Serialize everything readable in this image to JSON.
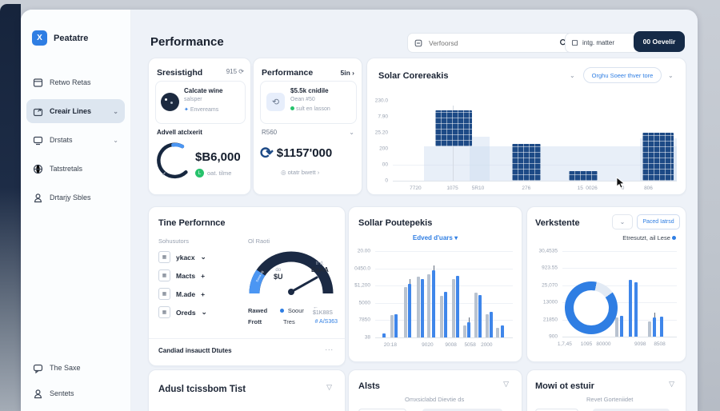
{
  "app_colors": {
    "accent": "#2f7ee3",
    "navy": "#152a47",
    "bar_dark": "#1d4a86",
    "bar_blue": "#3f86ea",
    "bar_gray": "#b9c3d0",
    "green": "#27c26c"
  },
  "sidebar": {
    "logo_glyph": "X",
    "logo_text": "Peatatre",
    "items": [
      {
        "label": "Retwo Retas",
        "icon": "window-icon",
        "chevron": false,
        "active": false
      },
      {
        "label": "Creair Lines",
        "icon": "box-arrow-icon",
        "chevron": true,
        "active": true
      },
      {
        "label": "Drstats",
        "icon": "monitor-icon",
        "chevron": true,
        "active": false
      },
      {
        "label": "Tatstretals",
        "icon": "globe-icon",
        "chevron": false,
        "active": false
      },
      {
        "label": "Drtarjy Sbles",
        "icon": "user-icon",
        "chevron": false,
        "active": false
      }
    ],
    "footer_items": [
      {
        "label": "The Saxe",
        "icon": "chat-icon"
      },
      {
        "label": "Sentets",
        "icon": "user-icon"
      }
    ]
  },
  "header": {
    "title": "Performance",
    "search_placeholder": "Verfoorsd",
    "filter_label": "intg. matter",
    "primary_button": "00 Oevelir"
  },
  "stat_card_1": {
    "title": "Sresistighd",
    "meta": "915",
    "profile": {
      "name": "Calcate wine",
      "subtitle": "salsper",
      "badge": "Envereams"
    },
    "section_label": "Advell atclxerit",
    "amount": "$B6,000",
    "footer_badge": "L",
    "footer_text": "oat. tilme"
  },
  "stat_card_2": {
    "title": "Performance",
    "link": "5in ›",
    "profile": {
      "name": "$5.5k cnidile",
      "subtitle": "Oean #50",
      "status": "sult en lasson"
    },
    "dropdown": "R560",
    "amount": "$1157'000",
    "footer_text": "otatr bwett ›"
  },
  "solar_chart_card": {
    "title": "Solar Corereakis",
    "pill_button": "Orghu Soeer thver tore"
  },
  "time_card": {
    "title": "Tine Perfornnce",
    "col_left_label": "Sohusutors",
    "col_right_label": "Ol Raoti",
    "list_items": [
      {
        "label": "ykacx",
        "suffix": "chevron"
      },
      {
        "label": "Macts",
        "suffix": "plus"
      },
      {
        "label": "M.ade",
        "suffix": "plus"
      },
      {
        "label": "Oreds",
        "suffix": "chevron"
      }
    ],
    "gauge": {
      "value_small": "do",
      "value": "$U",
      "right_small": "tr d.",
      "right": "BaAA",
      "segment_label": "Soow ug"
    },
    "legend_rows": [
      {
        "a": "Rawed",
        "b": "Soour",
        "c": "← $1K88S",
        "dot": true,
        "c_blue": false
      },
      {
        "a": "Frott",
        "b": "Tres",
        "c": "# A/S363",
        "dot": false,
        "c_blue": true
      }
    ],
    "footer": "Candiad insauctt Dtutes",
    "footer_more": "..."
  },
  "poute_card": {
    "title": "Sollar Poutepekis",
    "dropdown": "Edved d'uars"
  },
  "verk_card": {
    "title": "Verkstente",
    "button": "Paced Iatrsd",
    "legend": "Etresutzt, ail Lese"
  },
  "bottom_cards": [
    {
      "title": "Adusl tcissbom Tist",
      "subtitle": ""
    },
    {
      "title": "Alsts",
      "subtitle": "Omxsiclabd Dievtie ds"
    },
    {
      "title": "Mowi ot estuir",
      "subtitle": "Revet Gorteniidet"
    }
  ],
  "chart_data": [
    {
      "id": "solar_corereakis",
      "type": "bar",
      "title": "Solar Corereakis",
      "y_ticks": [
        "230.0",
        "7.90",
        "25.20",
        "200",
        "00",
        "0"
      ],
      "x_ticks": [
        {
          "label": "7720",
          "x": 8
        },
        {
          "label": "1075",
          "x": 21
        },
        {
          "label": "5R10",
          "x": 30
        },
        {
          "label": "276",
          "x": 47
        },
        {
          "label": "15",
          "x": 66
        },
        {
          "label": "0026",
          "x": 70
        },
        {
          "label": "0",
          "x": 81
        },
        {
          "label": "806",
          "x": 90
        }
      ],
      "areas": [
        {
          "x": 11,
          "w": 89,
          "h": 43
        },
        {
          "x": 27,
          "w": 7,
          "h": 55
        },
        {
          "x": 87,
          "w": 13,
          "h": 53
        }
      ],
      "bars": [
        {
          "x": 15,
          "w": 13,
          "y0": 43,
          "y1": 88
        },
        {
          "x": 42,
          "w": 10,
          "y0": 0,
          "y1": 46
        },
        {
          "x": 62,
          "w": 10,
          "y0": 0,
          "y1": 12
        },
        {
          "x": 88,
          "w": 11,
          "y0": 0,
          "y1": 60
        }
      ],
      "crosshair_x": 21
    },
    {
      "id": "sollar_poutepekis",
      "type": "bar",
      "title": "Sollar Poutepekis",
      "y_ticks": [
        "20.00",
        "0450.0",
        "$1,200",
        "5000",
        "7850",
        "38"
      ],
      "x_ticks": [
        {
          "label": "20:18",
          "x": 11
        },
        {
          "label": "9020",
          "x": 38
        },
        {
          "label": "9008",
          "x": 55
        },
        {
          "label": "5058",
          "x": 69
        },
        {
          "label": "2000",
          "x": 81
        }
      ],
      "bars": [
        {
          "x": 5,
          "h": 5,
          "c": "b"
        },
        {
          "x": 11,
          "h": 26,
          "c": "g"
        },
        {
          "x": 14,
          "h": 27,
          "c": "b"
        },
        {
          "x": 21,
          "h": 58,
          "c": "g"
        },
        {
          "x": 24,
          "h": 62,
          "c": "b",
          "w": 1
        },
        {
          "x": 30,
          "h": 70,
          "c": "g"
        },
        {
          "x": 33,
          "h": 68,
          "c": "b"
        },
        {
          "x": 38,
          "h": 73,
          "c": "g"
        },
        {
          "x": 41,
          "h": 78,
          "c": "b",
          "w": 1
        },
        {
          "x": 47,
          "h": 48,
          "c": "g"
        },
        {
          "x": 50,
          "h": 53,
          "c": "b"
        },
        {
          "x": 56,
          "h": 68,
          "c": "g"
        },
        {
          "x": 59,
          "h": 71,
          "c": "b"
        },
        {
          "x": 64,
          "h": 14,
          "c": "g"
        },
        {
          "x": 67,
          "h": 18,
          "c": "b",
          "w": 1
        },
        {
          "x": 72,
          "h": 52,
          "c": "g"
        },
        {
          "x": 75,
          "h": 49,
          "c": "b"
        },
        {
          "x": 80,
          "h": 27,
          "c": "g"
        },
        {
          "x": 83,
          "h": 30,
          "c": "b"
        },
        {
          "x": 88,
          "h": 11,
          "c": "g"
        },
        {
          "x": 91,
          "h": 14,
          "c": "b"
        }
      ]
    },
    {
      "id": "verkstente",
      "type": "donut-bar",
      "title": "Verkstente",
      "y_ticks": [
        "30,4535",
        "923.55",
        "25,070",
        "13000",
        "21850",
        "900"
      ],
      "x_ticks": [
        {
          "label": "1,7,45",
          "x": 2
        },
        {
          "label": "1095",
          "x": 21
        },
        {
          "label": "80000",
          "x": 36
        },
        {
          "label": "9098",
          "x": 68
        },
        {
          "label": "8508",
          "x": 85
        }
      ],
      "donut": {
        "filled_deg": 318
      },
      "bars": [
        {
          "x": 46,
          "h": 22,
          "c": "g"
        },
        {
          "x": 50,
          "h": 24,
          "c": "b"
        },
        {
          "x": 58,
          "h": 66,
          "c": "b"
        },
        {
          "x": 63,
          "h": 64,
          "c": "b"
        },
        {
          "x": 75,
          "h": 18,
          "c": "g"
        },
        {
          "x": 79,
          "h": 22,
          "c": "b",
          "w": 1
        },
        {
          "x": 85,
          "h": 23,
          "c": "b"
        }
      ]
    }
  ]
}
